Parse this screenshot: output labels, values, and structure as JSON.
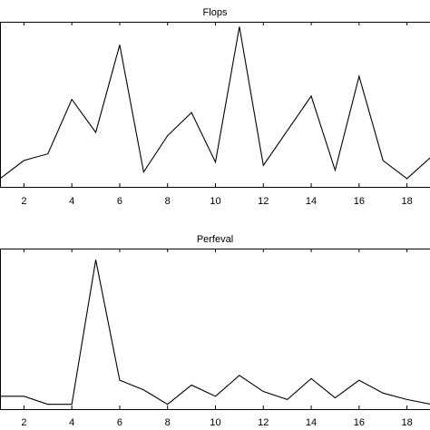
{
  "chart_data": [
    {
      "type": "line",
      "title": "Flops",
      "xlabel": "",
      "ylabel": "",
      "x": [
        1,
        2,
        3,
        4,
        5,
        6,
        7,
        8,
        9,
        10,
        11,
        12,
        13,
        14,
        15,
        16,
        17,
        18,
        19
      ],
      "xticks": [
        2,
        4,
        6,
        8,
        10,
        12,
        14,
        16,
        18
      ],
      "xlim": [
        1,
        19
      ],
      "ylim": [
        0,
        1
      ],
      "grid": false,
      "series": [
        {
          "values": [
            0.05,
            0.16,
            0.2,
            0.53,
            0.33,
            0.86,
            0.09,
            0.31,
            0.45,
            0.15,
            0.97,
            0.13,
            0.34,
            0.55,
            0.1,
            0.67,
            0.16,
            0.05,
            0.18
          ]
        }
      ]
    },
    {
      "type": "line",
      "title": "Perfeval",
      "xlabel": "",
      "ylabel": "",
      "x": [
        1,
        2,
        3,
        4,
        5,
        6,
        7,
        8,
        9,
        10,
        11,
        12,
        13,
        14,
        15,
        16,
        17,
        18,
        19
      ],
      "xticks": [
        2,
        4,
        6,
        8,
        10,
        12,
        14,
        16,
        18
      ],
      "xlim": [
        1,
        19
      ],
      "ylim": [
        0,
        1
      ],
      "grid": false,
      "series": [
        {
          "values": [
            0.08,
            0.08,
            0.03,
            0.03,
            0.93,
            0.18,
            0.12,
            0.03,
            0.15,
            0.08,
            0.21,
            0.11,
            0.06,
            0.19,
            0.07,
            0.18,
            0.1,
            0.06,
            0.03
          ]
        }
      ]
    }
  ]
}
